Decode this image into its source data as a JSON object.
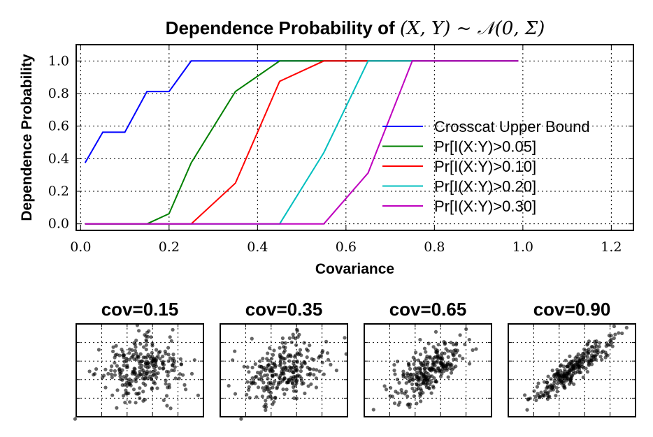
{
  "chart_data": [
    {
      "type": "line",
      "title": "Dependence Probability of",
      "title_math": "(X, Y) ~ 𝒩(0, Σ)",
      "xlabel": "Covariance",
      "ylabel": "Dependence Probability",
      "xlim": [
        -0.01,
        1.25
      ],
      "ylim": [
        -0.04,
        1.1
      ],
      "xticks": [
        0.0,
        0.2,
        0.4,
        0.6,
        0.8,
        1.0,
        1.2
      ],
      "xtick_labels": [
        "0.0",
        "0.2",
        "0.4",
        "0.6",
        "0.8",
        "1.0",
        "1.2"
      ],
      "yticks": [
        0.0,
        0.2,
        0.4,
        0.6,
        0.8,
        1.0
      ],
      "ytick_labels": [
        "0.0",
        "0.2",
        "0.4",
        "0.6",
        "0.8",
        "1.0"
      ],
      "grid": true,
      "legend_position": "right",
      "x": [
        0.01,
        0.05,
        0.1,
        0.15,
        0.2,
        0.25,
        0.35,
        0.45,
        0.55,
        0.65,
        0.75,
        0.85,
        0.99
      ],
      "series": [
        {
          "name": "Crosscat Upper Bound",
          "color": "#0000ff",
          "values": [
            0.375,
            0.5625,
            0.5625,
            0.8125,
            0.8125,
            1.0,
            1.0,
            1.0,
            1.0,
            1.0,
            1.0,
            1.0,
            1.0
          ]
        },
        {
          "name": "Pr[I(X:Y)>0.05]",
          "color": "#008000",
          "values": [
            0.0,
            0.0,
            0.0,
            0.0,
            0.0625,
            0.375,
            0.8125,
            1.0,
            1.0,
            1.0,
            1.0,
            1.0,
            1.0
          ]
        },
        {
          "name": "Pr[I(X:Y)>0.10]",
          "color": "#ff0000",
          "values": [
            0.0,
            0.0,
            0.0,
            0.0,
            0.0,
            0.0,
            0.25,
            0.875,
            1.0,
            1.0,
            1.0,
            1.0,
            1.0
          ]
        },
        {
          "name": "Pr[I(X:Y)>0.20]",
          "color": "#00bfbf",
          "values": [
            0.0,
            0.0,
            0.0,
            0.0,
            0.0,
            0.0,
            0.0,
            0.0,
            0.4375,
            1.0,
            1.0,
            1.0,
            1.0
          ]
        },
        {
          "name": "Pr[I(X:Y)>0.30]",
          "color": "#bf00bf",
          "values": [
            0.0,
            0.0,
            0.0,
            0.0,
            0.0,
            0.0,
            0.0,
            0.0,
            0.0,
            0.3125,
            1.0,
            1.0,
            1.0
          ]
        }
      ]
    },
    {
      "type": "scatter",
      "title": "cov=0.15",
      "covariance": 0.15,
      "point_color": "#000000"
    },
    {
      "type": "scatter",
      "title": "cov=0.35",
      "covariance": 0.35,
      "point_color": "#000000"
    },
    {
      "type": "scatter",
      "title": "cov=0.65",
      "covariance": 0.65,
      "point_color": "#000000"
    },
    {
      "type": "scatter",
      "title": "cov=0.90",
      "covariance": 0.9,
      "point_color": "#000000"
    }
  ]
}
